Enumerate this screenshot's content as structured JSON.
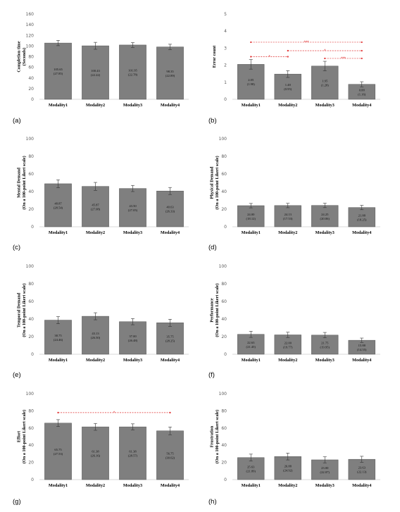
{
  "figure": {
    "colors": {
      "bar": "#7f7f7f",
      "bar_edge": "#555555",
      "axis": "#d9d9d9",
      "significance": "#e03030"
    }
  },
  "chart_data": [
    {
      "type": "bar",
      "panel_label": "(a)",
      "ylabel": [
        "Completion time",
        "(Seconds)"
      ],
      "ylim": [
        0,
        160
      ],
      "yticks": [
        0,
        20,
        40,
        60,
        80,
        100,
        120,
        140,
        160
      ],
      "categories": [
        "Modality1",
        "Modality2",
        "Modality3",
        "Modality4"
      ],
      "values": [
        105.65,
        100.43,
        101.95,
        98.35
      ],
      "sd": [
        27.85,
        22.22,
        22.78,
        22.89
      ],
      "value_labels": [
        "105.65",
        "100.43",
        "101.95",
        "98.35"
      ],
      "sd_labels": [
        "(27.85)",
        "(22.22)",
        "(22.78)",
        "(22.89)"
      ],
      "error_bar": [
        5.0,
        6.5,
        4.5,
        5.0
      ],
      "grid": false,
      "significance": []
    },
    {
      "type": "bar",
      "panel_label": "(b)",
      "ylabel": [
        "Error count"
      ],
      "ylim": [
        0,
        5
      ],
      "yticks": [
        0,
        1,
        2,
        3,
        4,
        5
      ],
      "categories": [
        "Modality1",
        "Modality2",
        "Modality3",
        "Modality4"
      ],
      "values": [
        2.05,
        1.48,
        1.95,
        0.88
      ],
      "sd": [
        1.98,
        0.95,
        1.28,
        1.16
      ],
      "value_labels": [
        "2.05",
        "1.48",
        "1.95",
        "0.88"
      ],
      "sd_labels": [
        "(1.98)",
        "(0.95)",
        "(1.28)",
        "(1.16)"
      ],
      "error_bar": [
        0.28,
        0.2,
        0.28,
        0.15
      ],
      "grid": false,
      "significance": [
        {
          "from": 0,
          "to": 3,
          "y": 3.35,
          "mark": "***"
        },
        {
          "from": 1,
          "to": 3,
          "y": 2.85,
          "mark": "*"
        },
        {
          "from": 0,
          "to": 1,
          "y": 2.5,
          "mark": "*"
        },
        {
          "from": 2,
          "to": 3,
          "y": 2.4,
          "mark": "***"
        }
      ]
    },
    {
      "type": "bar",
      "panel_label": "(c)",
      "ylabel": [
        "Mental Demand",
        "(On a 100-point Likert scale)"
      ],
      "ylim": [
        0,
        100
      ],
      "yticks": [
        0,
        20,
        40,
        60,
        80,
        100
      ],
      "categories": [
        "Modality1",
        "Modality2",
        "Modality3",
        "Modality4"
      ],
      "values": [
        48.87,
        45.87,
        43.5,
        40.63
      ],
      "sd": [
        28.54,
        27.08,
        27.05,
        26.33
      ],
      "value_labels": [
        "48.87",
        "45.87",
        "43.50",
        "40.63"
      ],
      "sd_labels": [
        "(28.54)",
        "(27.08)",
        "(27.05)",
        "(26.33)"
      ],
      "error_bar": [
        4.5,
        4.5,
        3.5,
        4.0
      ],
      "grid": false,
      "significance": []
    },
    {
      "type": "bar",
      "panel_label": "(d)",
      "ylabel": [
        "Physical Demand",
        "(On a 100-point Likert scale)"
      ],
      "ylim": [
        0,
        100
      ],
      "yticks": [
        0,
        20,
        40,
        60,
        80,
        100
      ],
      "categories": [
        "Modality1",
        "Modality2",
        "Modality3",
        "Modality4"
      ],
      "values": [
        24.0,
        24.13,
        24.25,
        21.88
      ],
      "sd": [
        18.12,
        17.53,
        20.06,
        18.25
      ],
      "value_labels": [
        "24.00",
        "24.13",
        "24.25",
        "21.88"
      ],
      "sd_labels": [
        "(18.12)",
        "(17.53)",
        "(20.06)",
        "(18.25)"
      ],
      "error_bar": [
        2.5,
        2.5,
        2.5,
        2.5
      ],
      "grid": false,
      "significance": []
    },
    {
      "type": "bar",
      "panel_label": "(e)",
      "ylabel": [
        "Temporal Demand",
        "(On a 100-point Likert scale)"
      ],
      "ylim": [
        0,
        100
      ],
      "yticks": [
        0,
        20,
        40,
        60,
        80,
        100
      ],
      "categories": [
        "Modality1",
        "Modality2",
        "Modality3",
        "Modality4"
      ],
      "values": [
        38.75,
        43.13,
        37.0,
        35.75
      ],
      "sd": [
        24.46,
        26.5,
        26.48,
        28.25
      ],
      "value_labels": [
        "38.75",
        "43.13",
        "37.00",
        "35.75"
      ],
      "sd_labels": [
        "(24.46)",
        "(26.50)",
        "(26.48)",
        "(28.25)"
      ],
      "error_bar": [
        4.0,
        4.0,
        3.5,
        4.0
      ],
      "grid": false,
      "significance": []
    },
    {
      "type": "bar",
      "panel_label": "(f)",
      "ylabel": [
        "Performance",
        "(On a 100-point Likert scale)"
      ],
      "ylim": [
        0,
        100
      ],
      "yticks": [
        0,
        20,
        40,
        60,
        80,
        100
      ],
      "categories": [
        "Modality1",
        "Modality2",
        "Modality3",
        "Modality4"
      ],
      "values": [
        22.63,
        22.0,
        21.75,
        15.88
      ],
      "sd": [
        21.45,
        19.77,
        19.95,
        14.55
      ],
      "value_labels": [
        "22.63",
        "22.00",
        "21.75",
        "15.88"
      ],
      "sd_labels": [
        "(21.45)",
        "(19.77)",
        "(19.95)",
        "(14.55)"
      ],
      "error_bar": [
        3.5,
        3.0,
        3.0,
        2.5
      ],
      "grid": false,
      "significance": []
    },
    {
      "type": "bar",
      "panel_label": "(g)",
      "ylabel": [
        "Effort",
        "(On a 100-point Likert scale)"
      ],
      "ylim": [
        0,
        100
      ],
      "yticks": [
        0,
        20,
        40,
        60,
        80,
        100
      ],
      "categories": [
        "Modality1",
        "Modality2",
        "Modality3",
        "Modality4"
      ],
      "values": [
        65.75,
        61.38,
        61.38,
        56.75
      ],
      "sd": [
        27.53,
        26.16,
        28.57,
        30.62
      ],
      "value_labels": [
        "65.75",
        "61.38",
        "61.38",
        "56.75"
      ],
      "sd_labels": [
        "(27.53)",
        "(26.16)",
        "(28.57)",
        "(30.62)"
      ],
      "error_bar": [
        4.0,
        4.0,
        3.5,
        4.5
      ],
      "grid": false,
      "significance": [
        {
          "from": 0,
          "to": 3,
          "y": 78,
          "mark": "*"
        }
      ]
    },
    {
      "type": "bar",
      "panel_label": "(h)",
      "ylabel": [
        "Frustration",
        "(On a 100-point Likert scale)"
      ],
      "ylim": [
        0,
        100
      ],
      "yticks": [
        0,
        20,
        40,
        60,
        80,
        100
      ],
      "categories": [
        "Modality1",
        "Modality2",
        "Modality3",
        "Modality4"
      ],
      "values": [
        25.63,
        26.88,
        23.0,
        23.63
      ],
      "sd": [
        21.89,
        24.92,
        22.07,
        22.13
      ],
      "value_labels": [
        "25.63",
        "26.88",
        "23.00",
        "23.63"
      ],
      "sd_labels": [
        "(21.89)",
        "(24.92)",
        "(22.07)",
        "(22.13)"
      ],
      "error_bar": [
        4.0,
        4.0,
        3.5,
        3.5
      ],
      "grid": false,
      "significance": []
    }
  ]
}
